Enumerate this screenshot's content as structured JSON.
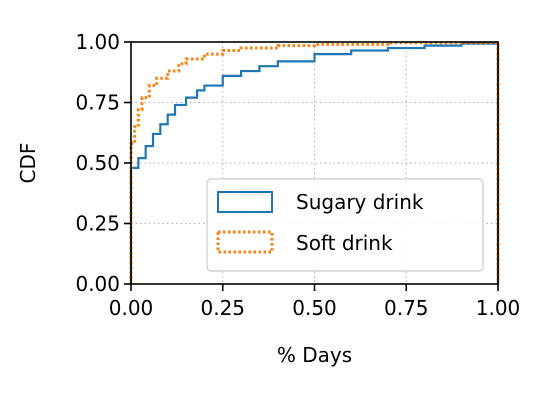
{
  "chart_data": {
    "type": "line",
    "xlabel": "% Days",
    "ylabel": "CDF",
    "xlim": [
      0.0,
      1.0
    ],
    "ylim": [
      0.0,
      1.0
    ],
    "xticks": [
      "0.00",
      "0.25",
      "0.50",
      "0.75",
      "1.00"
    ],
    "yticks": [
      "0.00",
      "0.25",
      "0.50",
      "0.75",
      "1.00"
    ],
    "grid": true,
    "legend_position": "lower-right",
    "series": [
      {
        "name": "Sugary drink",
        "color": "#1f77b4",
        "style": "solid-step",
        "x": [
          0.0,
          0.0,
          0.02,
          0.04,
          0.06,
          0.08,
          0.1,
          0.12,
          0.15,
          0.18,
          0.2,
          0.25,
          0.3,
          0.35,
          0.4,
          0.5,
          0.6,
          0.7,
          0.8,
          0.9,
          1.0,
          1.0
        ],
        "y": [
          0.0,
          0.48,
          0.52,
          0.57,
          0.62,
          0.66,
          0.7,
          0.74,
          0.77,
          0.8,
          0.82,
          0.86,
          0.88,
          0.9,
          0.92,
          0.95,
          0.965,
          0.975,
          0.985,
          0.993,
          1.0,
          0.0
        ]
      },
      {
        "name": "Soft drink",
        "color": "#ff7f0e",
        "style": "dotted-step",
        "x": [
          0.0,
          0.0,
          0.01,
          0.02,
          0.03,
          0.05,
          0.07,
          0.1,
          0.13,
          0.15,
          0.2,
          0.25,
          0.3,
          0.4,
          0.5,
          0.7,
          1.0,
          1.0
        ],
        "y": [
          0.0,
          0.58,
          0.65,
          0.72,
          0.77,
          0.82,
          0.85,
          0.88,
          0.91,
          0.93,
          0.95,
          0.965,
          0.975,
          0.985,
          0.99,
          0.997,
          1.0,
          0.0
        ]
      }
    ]
  }
}
